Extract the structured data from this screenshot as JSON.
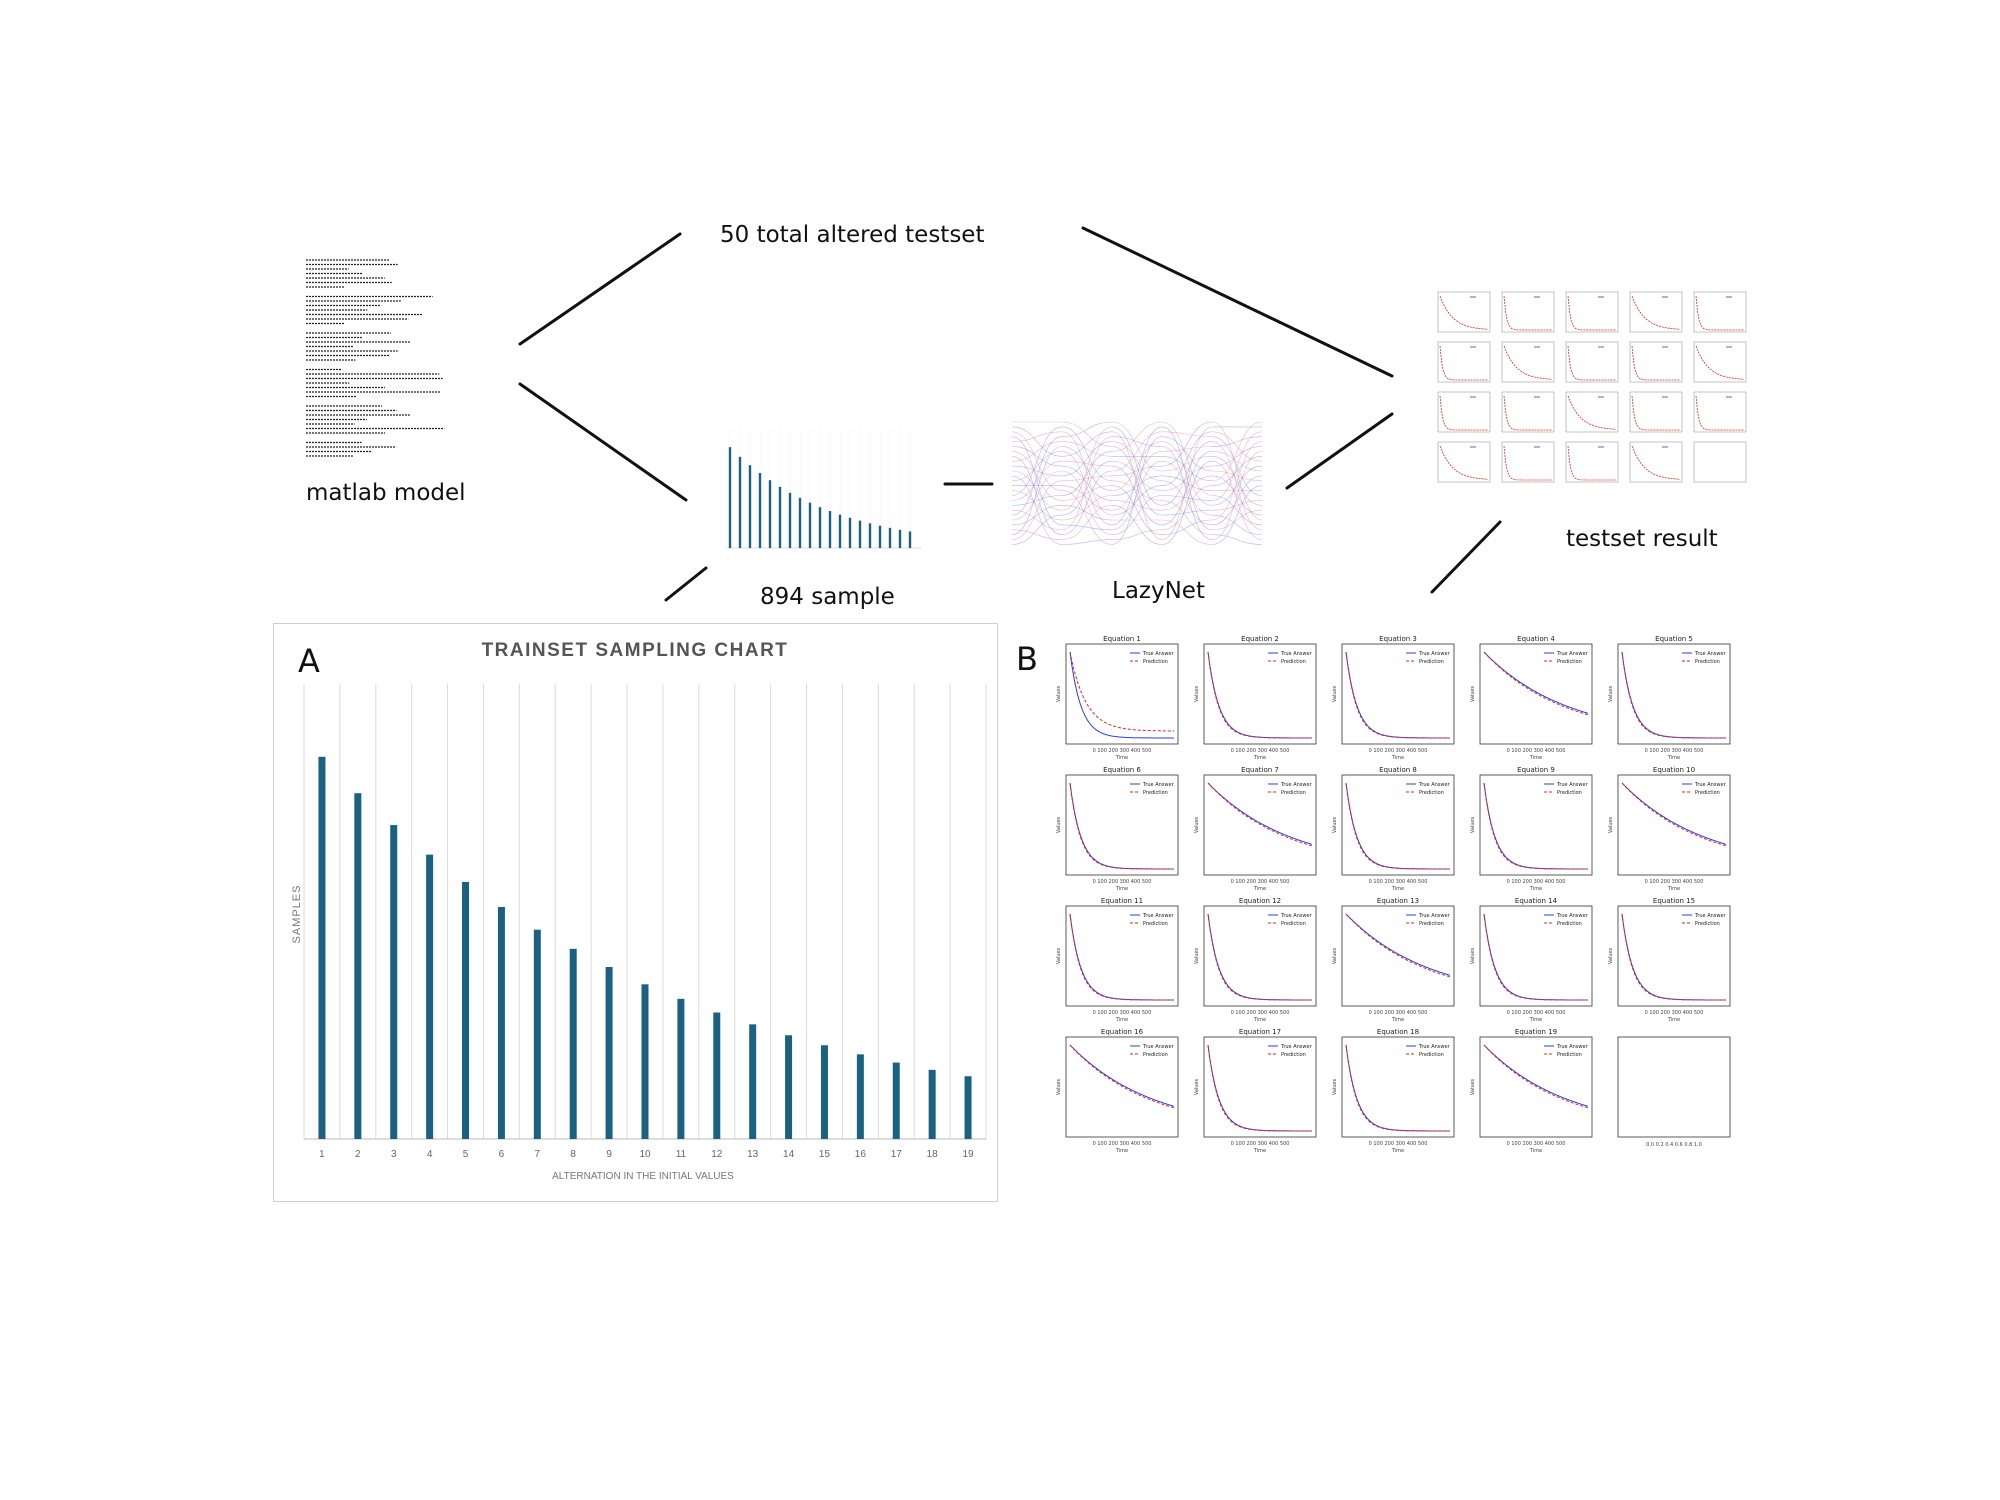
{
  "labels": {
    "matlab_model": "matlab model",
    "altered_testset": "50 total altered testset",
    "sample": "894 sample",
    "lazynet": "LazyNet",
    "testset_result": "testset result",
    "panel_a": "A",
    "panel_b": "B"
  },
  "colors": {
    "bar": "#1b6282",
    "true_line": "#2b3de0",
    "prediction_line": "#e22525",
    "axis": "#333333"
  },
  "chart_data": [
    {
      "type": "bar",
      "title": "TRAINSET SAMPLING CHART",
      "xlabel": "ALTERNATION IN THE INITIAL VALUES",
      "ylabel": "SAMPLES",
      "categories": [
        "1",
        "2",
        "3",
        "4",
        "5",
        "6",
        "7",
        "8",
        "9",
        "10",
        "11",
        "12",
        "13",
        "14",
        "15",
        "16",
        "17",
        "18",
        "19"
      ],
      "values": [
        84,
        76,
        69,
        62.5,
        56.5,
        51,
        46,
        41.8,
        37.8,
        34,
        30.8,
        27.8,
        25.2,
        22.8,
        20.6,
        18.6,
        16.8,
        15.2,
        13.8
      ],
      "ylim": [
        0,
        100
      ]
    },
    {
      "type": "line",
      "legend": [
        "True Answer",
        "Prediction"
      ],
      "xlabel": "Time",
      "ylabel": "Values",
      "xticks": [
        "0",
        "100",
        "200",
        "300",
        "400",
        "500"
      ],
      "panels": [
        {
          "title": "Equation 1",
          "decay": "fast",
          "pred_offset": 0.08
        },
        {
          "title": "Equation 2",
          "decay": "fast",
          "pred_offset": 0
        },
        {
          "title": "Equation 3",
          "decay": "fast",
          "pred_offset": 0
        },
        {
          "title": "Equation 4",
          "decay": "slow",
          "pred_offset": 0
        },
        {
          "title": "Equation 5",
          "decay": "fast",
          "pred_offset": 0
        },
        {
          "title": "Equation 6",
          "decay": "fast",
          "pred_offset": 0
        },
        {
          "title": "Equation 7",
          "decay": "slow",
          "pred_offset": 0
        },
        {
          "title": "Equation 8",
          "decay": "fast",
          "pred_offset": 0
        },
        {
          "title": "Equation 9",
          "decay": "fast",
          "pred_offset": 0
        },
        {
          "title": "Equation 10",
          "decay": "slow",
          "pred_offset": 0
        },
        {
          "title": "Equation 11",
          "decay": "fast",
          "pred_offset": 0
        },
        {
          "title": "Equation 12",
          "decay": "fast",
          "pred_offset": 0
        },
        {
          "title": "Equation 13",
          "decay": "slow",
          "pred_offset": 0
        },
        {
          "title": "Equation 14",
          "decay": "fast",
          "pred_offset": 0
        },
        {
          "title": "Equation 15",
          "decay": "fast",
          "pred_offset": 0
        },
        {
          "title": "Equation 16",
          "decay": "slow",
          "pred_offset": 0
        },
        {
          "title": "Equation 17",
          "decay": "fast",
          "pred_offset": 0
        },
        {
          "title": "Equation 18",
          "decay": "fast",
          "pred_offset": 0
        },
        {
          "title": "Equation 19",
          "decay": "slow",
          "pred_offset": 0
        },
        {
          "title": "",
          "decay": "empty",
          "pred_offset": 0
        }
      ]
    }
  ]
}
